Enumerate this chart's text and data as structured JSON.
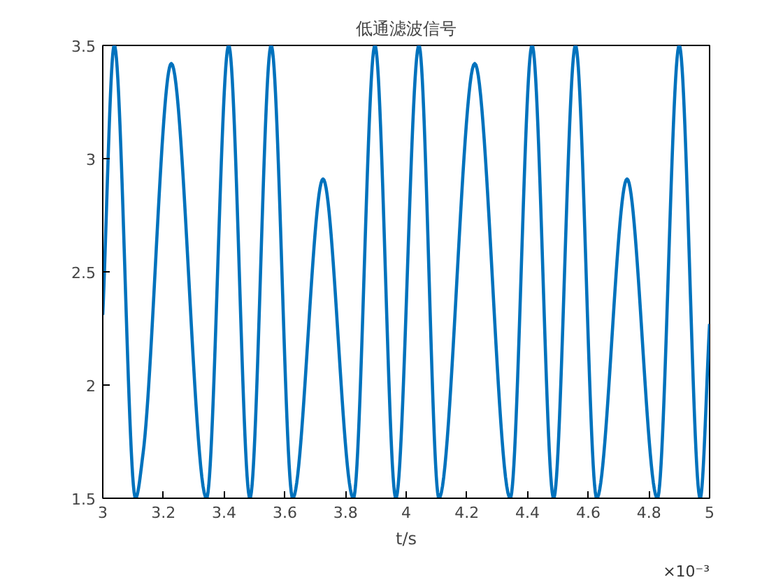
{
  "chart_data": {
    "type": "line",
    "title": "低通滤波信号",
    "xlabel": "t/s",
    "annotations": [
      "×10⁻³"
    ],
    "x": [
      3,
      3.038,
      3.108,
      3.133,
      3.226,
      3.342,
      3.415,
      3.485,
      3.555,
      3.626,
      3.726,
      3.826,
      3.897,
      3.966,
      4.042,
      4.108,
      4.226,
      4.343,
      4.415,
      4.486,
      4.558,
      4.628,
      4.728,
      4.828,
      4.9,
      4.969,
      5
    ],
    "series": [
      {
        "color": "#0072bd",
        "values": [
          2.31,
          3.5,
          1.5,
          1.7,
          3.42,
          1.5,
          3.5,
          1.5,
          3.5,
          1.5,
          2.91,
          1.5,
          3.5,
          1.5,
          3.5,
          1.5,
          3.42,
          1.5,
          3.5,
          1.5,
          3.5,
          1.5,
          2.91,
          1.5,
          3.5,
          1.5,
          2.27
        ]
      }
    ],
    "xlim": [
      3,
      5
    ],
    "ylim": [
      1.5,
      3.5
    ],
    "xticks": [
      3,
      3.2,
      3.4,
      3.6,
      3.8,
      4,
      4.2,
      4.4,
      4.6,
      4.8,
      5
    ],
    "yticks": [
      1.5,
      2,
      2.5,
      3,
      3.5
    ],
    "line_style": "solid"
  }
}
